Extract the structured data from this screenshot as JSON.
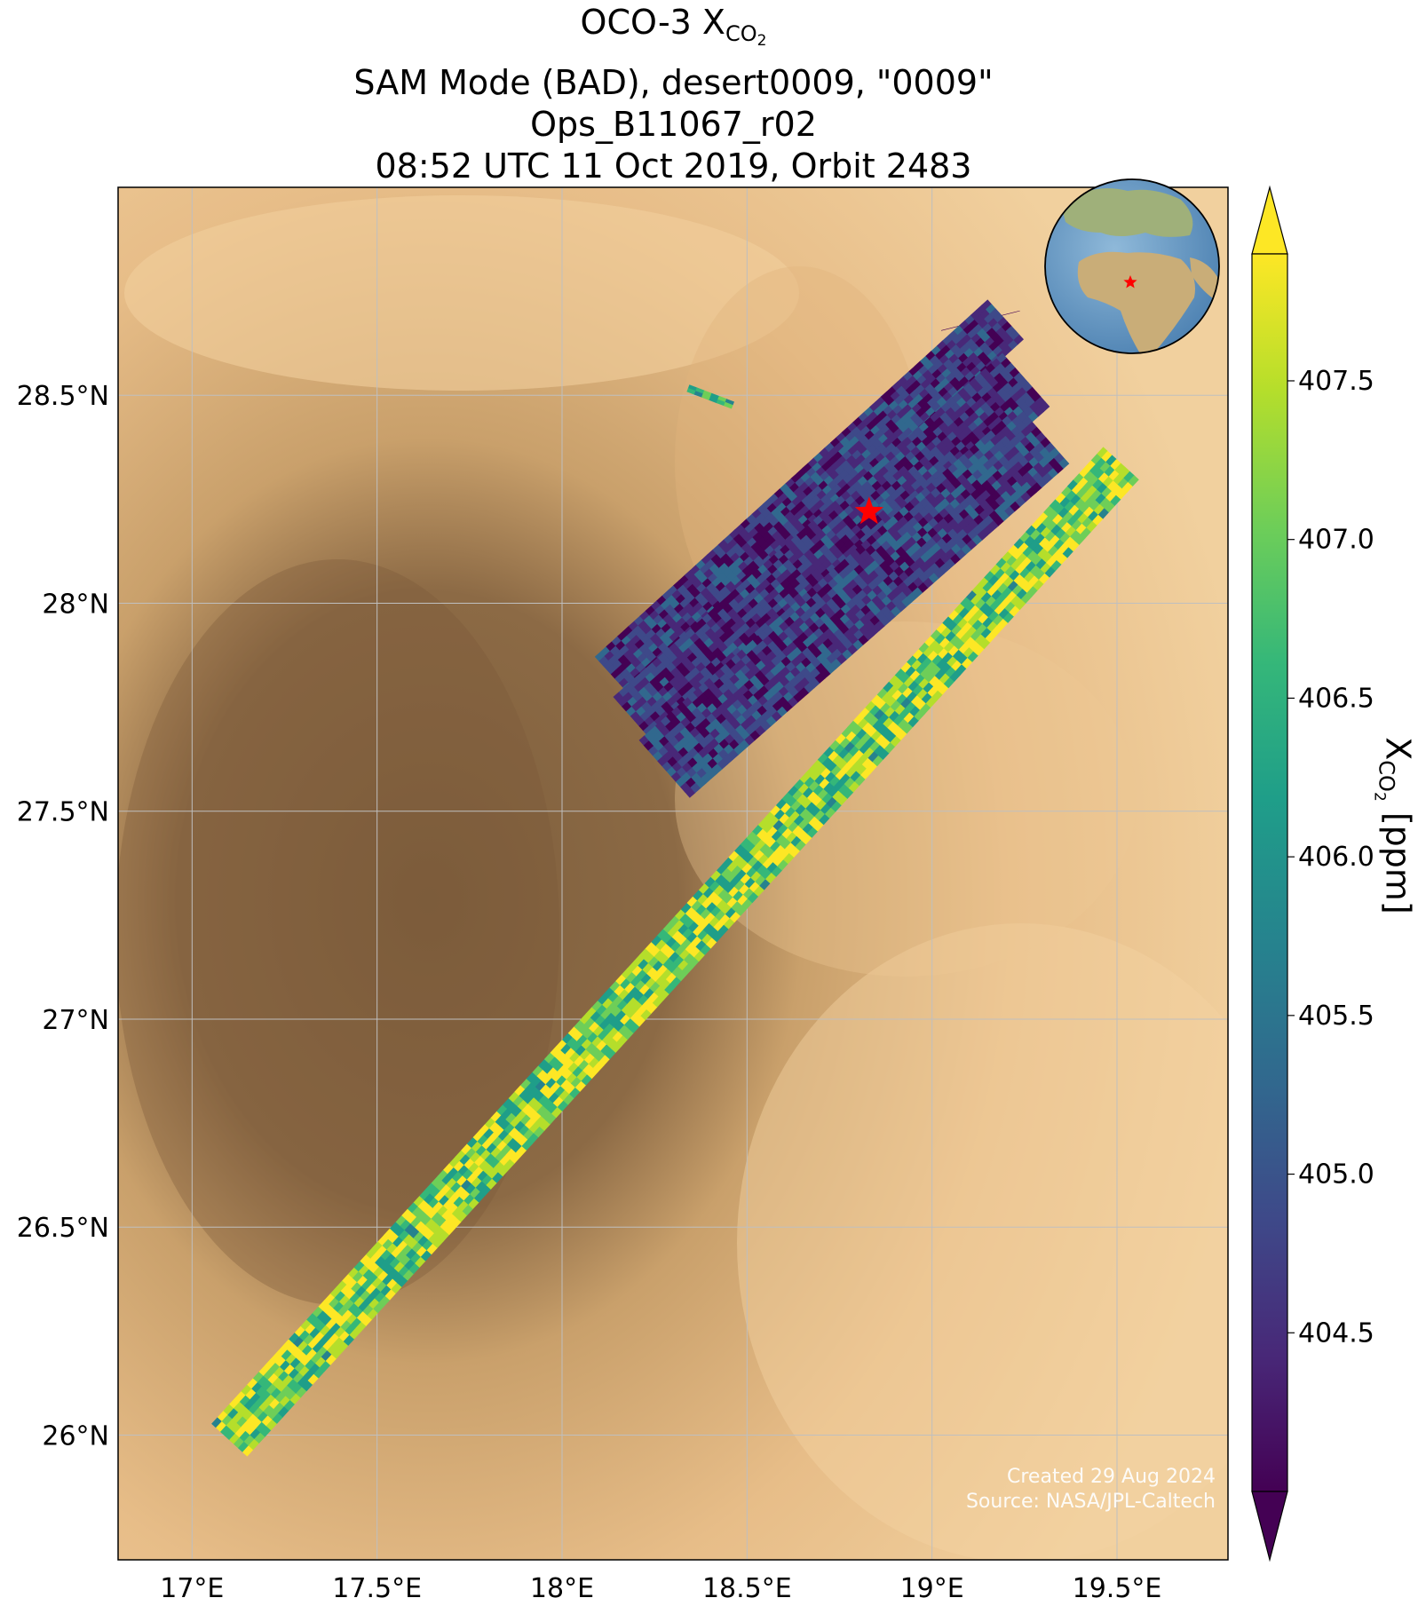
{
  "title": {
    "line1_prefix": "OCO-3 X",
    "line1_sub": "CO",
    "line1_subsub": "2",
    "line2": "SAM Mode (BAD), desert0009, \"0009\"",
    "line3": "Ops_B11067_r02",
    "line4": "08:52 UTC 11 Oct 2019, Orbit 2483"
  },
  "map": {
    "lon_range": [
      16.8,
      19.8
    ],
    "lat_range": [
      25.7,
      29.0
    ],
    "lon_ticks": [
      17.0,
      17.5,
      18.0,
      18.5,
      19.0,
      19.5
    ],
    "lon_tick_labels": [
      "17°E",
      "17.5°E",
      "18°E",
      "18.5°E",
      "19°E",
      "19.5°E"
    ],
    "lat_ticks": [
      26.0,
      26.5,
      27.0,
      27.5,
      28.0,
      28.5
    ],
    "lat_tick_labels": [
      "26°N",
      "26.5°N",
      "27°N",
      "27.5°N",
      "28°N",
      "28.5°N"
    ],
    "grid": true,
    "target_marker": {
      "lon": 18.83,
      "lat": 28.22,
      "symbol": "star",
      "color": "#ff0000"
    },
    "inset_globe": {
      "position": "top-right",
      "marker_color": "#ff0000"
    }
  },
  "colorbar": {
    "title_prefix": "X",
    "title_sub": "CO",
    "title_subsub": "2",
    "title_suffix": " [ppm]",
    "range": [
      404.0,
      407.9
    ],
    "ticks": [
      404.5,
      405.0,
      405.5,
      406.0,
      406.5,
      407.0,
      407.5
    ],
    "tick_labels": [
      "404.5",
      "405.0",
      "405.5",
      "406.0",
      "406.5",
      "407.0",
      "407.5"
    ],
    "colormap": "viridis",
    "extend": "both"
  },
  "credits": {
    "created": "Created 29 Aug 2024",
    "source": "Source: NASA/JPL-Caltech"
  },
  "colors": {
    "desert_light": "#e9c18f",
    "desert_dark": "#8a6a45",
    "grid": "#bfbfbf",
    "viridis": [
      "#440154",
      "#482878",
      "#3e4989",
      "#31688e",
      "#26828e",
      "#1f9e89",
      "#35b779",
      "#6ece58",
      "#b5de2b",
      "#fde725"
    ]
  }
}
